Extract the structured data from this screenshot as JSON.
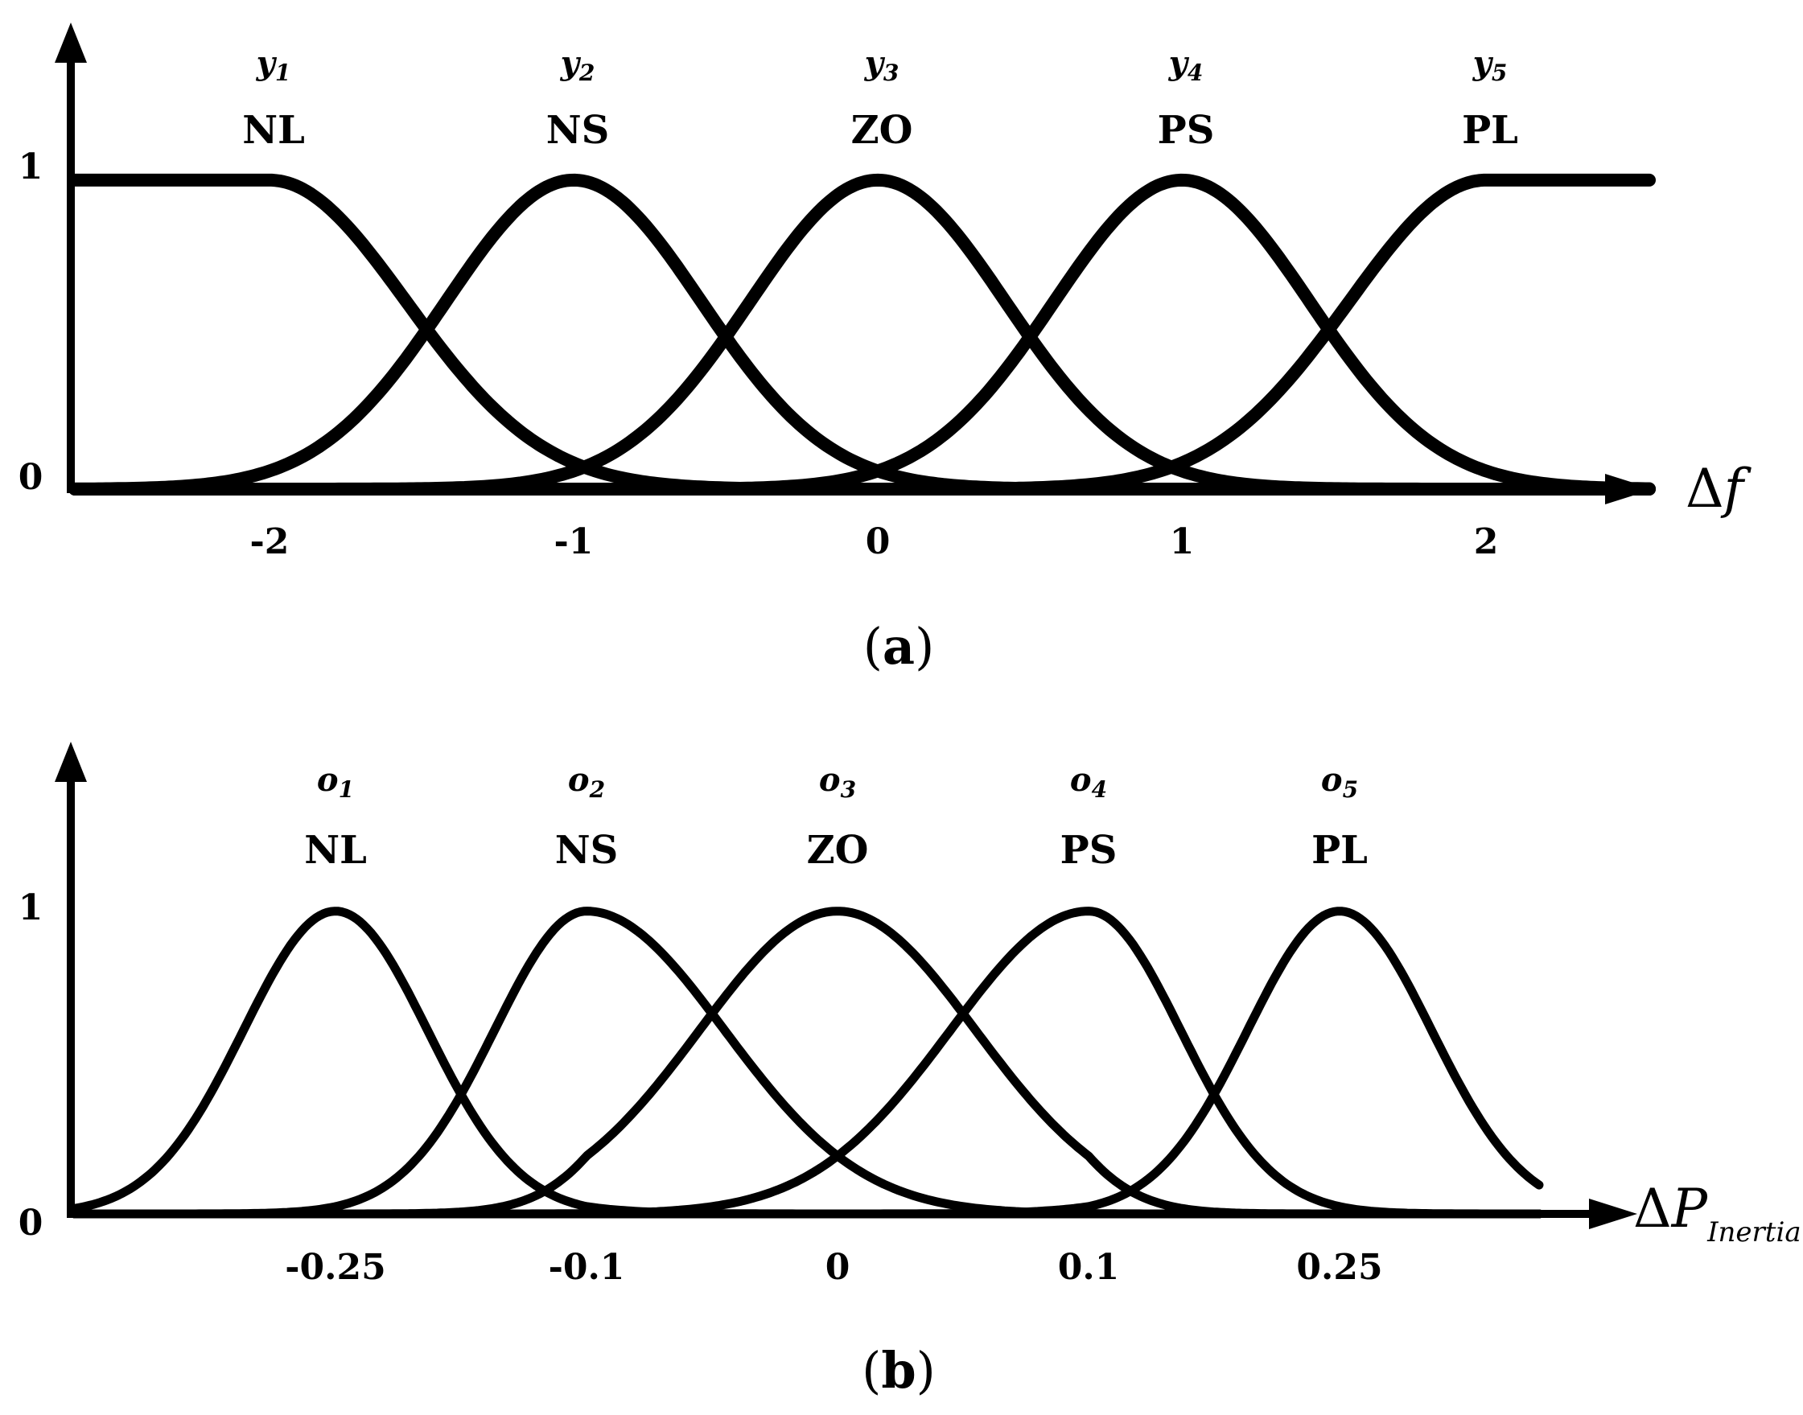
{
  "chart_data": [
    {
      "type": "line",
      "panel_label": "(a)",
      "xlabel": "Δf",
      "ylabel": "",
      "x_ticks": [
        "-2",
        "-1",
        "0",
        "1",
        "2"
      ],
      "y_ticks": [
        "0",
        "1"
      ],
      "xlim": [
        -2.6,
        2.6
      ],
      "ylim": [
        0,
        1
      ],
      "grid": false,
      "series": [
        {
          "label": "NL",
          "symbol": "y1",
          "shape": "z-shaped",
          "center": -2,
          "sigma": 0.45
        },
        {
          "label": "NS",
          "symbol": "y2",
          "shape": "gaussian",
          "center": -1,
          "sigma": 0.42
        },
        {
          "label": "ZO",
          "symbol": "y3",
          "shape": "gaussian",
          "center": 0,
          "sigma": 0.42
        },
        {
          "label": "PS",
          "symbol": "y4",
          "shape": "gaussian",
          "center": 1,
          "sigma": 0.42
        },
        {
          "label": "PL",
          "symbol": "y5",
          "shape": "s-shaped",
          "center": 2,
          "sigma": 0.45
        }
      ]
    },
    {
      "type": "line",
      "panel_label": "(b)",
      "xlabel": "ΔP",
      "xlabel_sub": "Inertia",
      "ylabel": "",
      "x_ticks": [
        "-0.25",
        "-0.1",
        "0",
        "0.1",
        "0.25"
      ],
      "y_ticks": [
        "0",
        "1"
      ],
      "xlim": [
        -0.35,
        0.35
      ],
      "ylim": [
        0,
        1
      ],
      "grid": false,
      "series": [
        {
          "label": "NL",
          "symbol": "o1",
          "shape": "gaussian",
          "center": -0.25,
          "sigma": 0.055
        },
        {
          "label": "NS",
          "symbol": "o2",
          "shape": "gaussian",
          "center": -0.1,
          "sigma": 0.055
        },
        {
          "label": "ZO",
          "symbol": "o3",
          "shape": "gaussian",
          "center": 0,
          "sigma": 0.055
        },
        {
          "label": "PS",
          "symbol": "o4",
          "shape": "gaussian",
          "center": 0.1,
          "sigma": 0.055
        },
        {
          "label": "PL",
          "symbol": "o5",
          "shape": "gaussian",
          "center": 0.25,
          "sigma": 0.055
        }
      ]
    }
  ]
}
